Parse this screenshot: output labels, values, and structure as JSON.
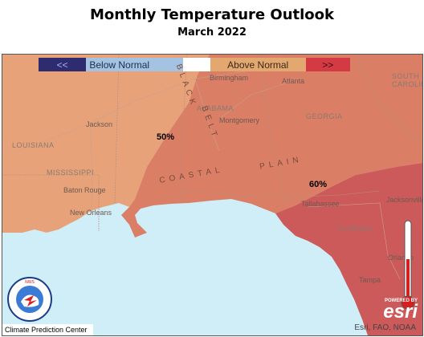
{
  "title": "Monthly Temperature Outlook",
  "subtitle": "March 2022",
  "legend": {
    "below_arrows": "<<",
    "below_label": "Below Normal",
    "above_label": "Above Normal",
    "above_arrows": ">>",
    "colors": {
      "below_dark": "#2e2b6e",
      "below_light": "#a4c3e3",
      "normal": "#ffffff",
      "above_light": "#e3a870",
      "above_dark": "#d43a44"
    }
  },
  "probabilities": [
    "50%",
    "60%"
  ],
  "states": [
    "LOUISIANA",
    "MISSISSIPPI",
    "ALABAMA",
    "GEORGIA",
    "FLORIDA",
    "SOUTH CAROLINA"
  ],
  "region_labels": [
    "BLACK",
    "BELT",
    "COASTAL",
    "PLAIN"
  ],
  "cities": [
    "Birmingham",
    "Atlanta",
    "Jackson",
    "Montgomery",
    "Baton Rouge",
    "New Orleans",
    "Tallahassee",
    "Jacksonville",
    "Orlando",
    "Tampa"
  ],
  "credits": {
    "attribution": "Esri, FAO, NOAA",
    "powered_by": "POWERED BY",
    "esri": "esri",
    "cpc": "Climate Prediction Center",
    "nws_ring": "NATIONAL WEATHER SERVICE"
  }
}
